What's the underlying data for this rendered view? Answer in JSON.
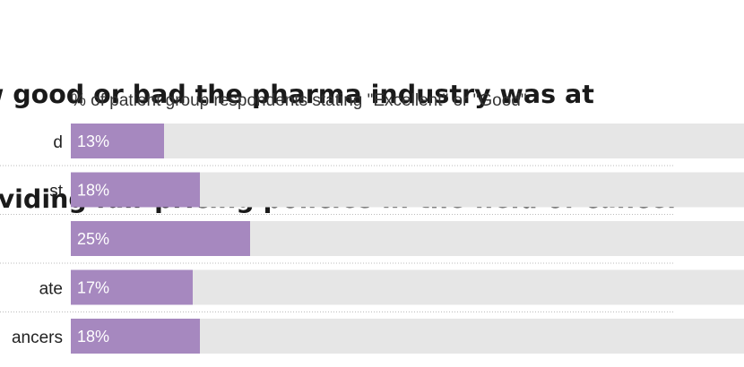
{
  "title_lines": [
    "w good or bad the pharma industry was at",
    "oviding fair pricing policies in the field of cancer"
  ],
  "subtitle": "% of patient group respondents stating \"Excellent\" or \"Good\"",
  "colors": {
    "bar": "#a688bf",
    "track": "#e6e6e6",
    "divider": "#bbbbbb"
  },
  "chart_data": {
    "type": "bar",
    "orientation": "horizontal",
    "categories": [
      "d",
      "st",
      "",
      "ate",
      "ancers"
    ],
    "values": [
      13,
      18,
      25,
      17,
      18
    ],
    "value_labels": [
      "13%",
      "18%",
      "25%",
      "17%",
      "18%"
    ],
    "unit": "%",
    "xlim": [
      0,
      100
    ]
  }
}
